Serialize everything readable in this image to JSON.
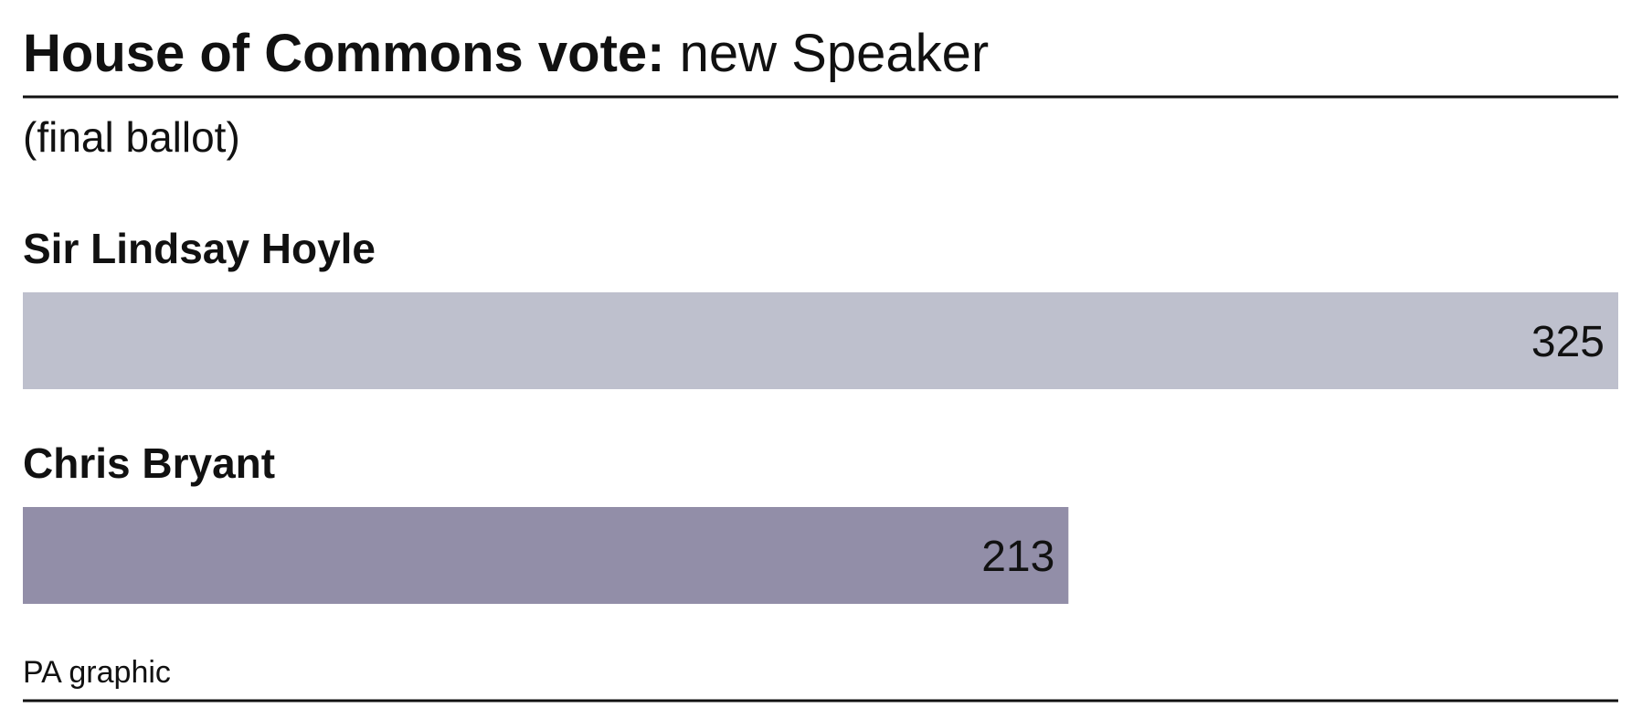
{
  "chart_data": {
    "type": "bar",
    "orientation": "horizontal",
    "title": "House of Commons vote:",
    "title_detail": "new Speaker",
    "subtitle": "(final ballot)",
    "categories": [
      "Sir Lindsay Hoyle",
      "Chris Bryant"
    ],
    "values": [
      325,
      213
    ],
    "colors": [
      "#bec0cd",
      "#928ea8"
    ],
    "source": "PA graphic"
  }
}
